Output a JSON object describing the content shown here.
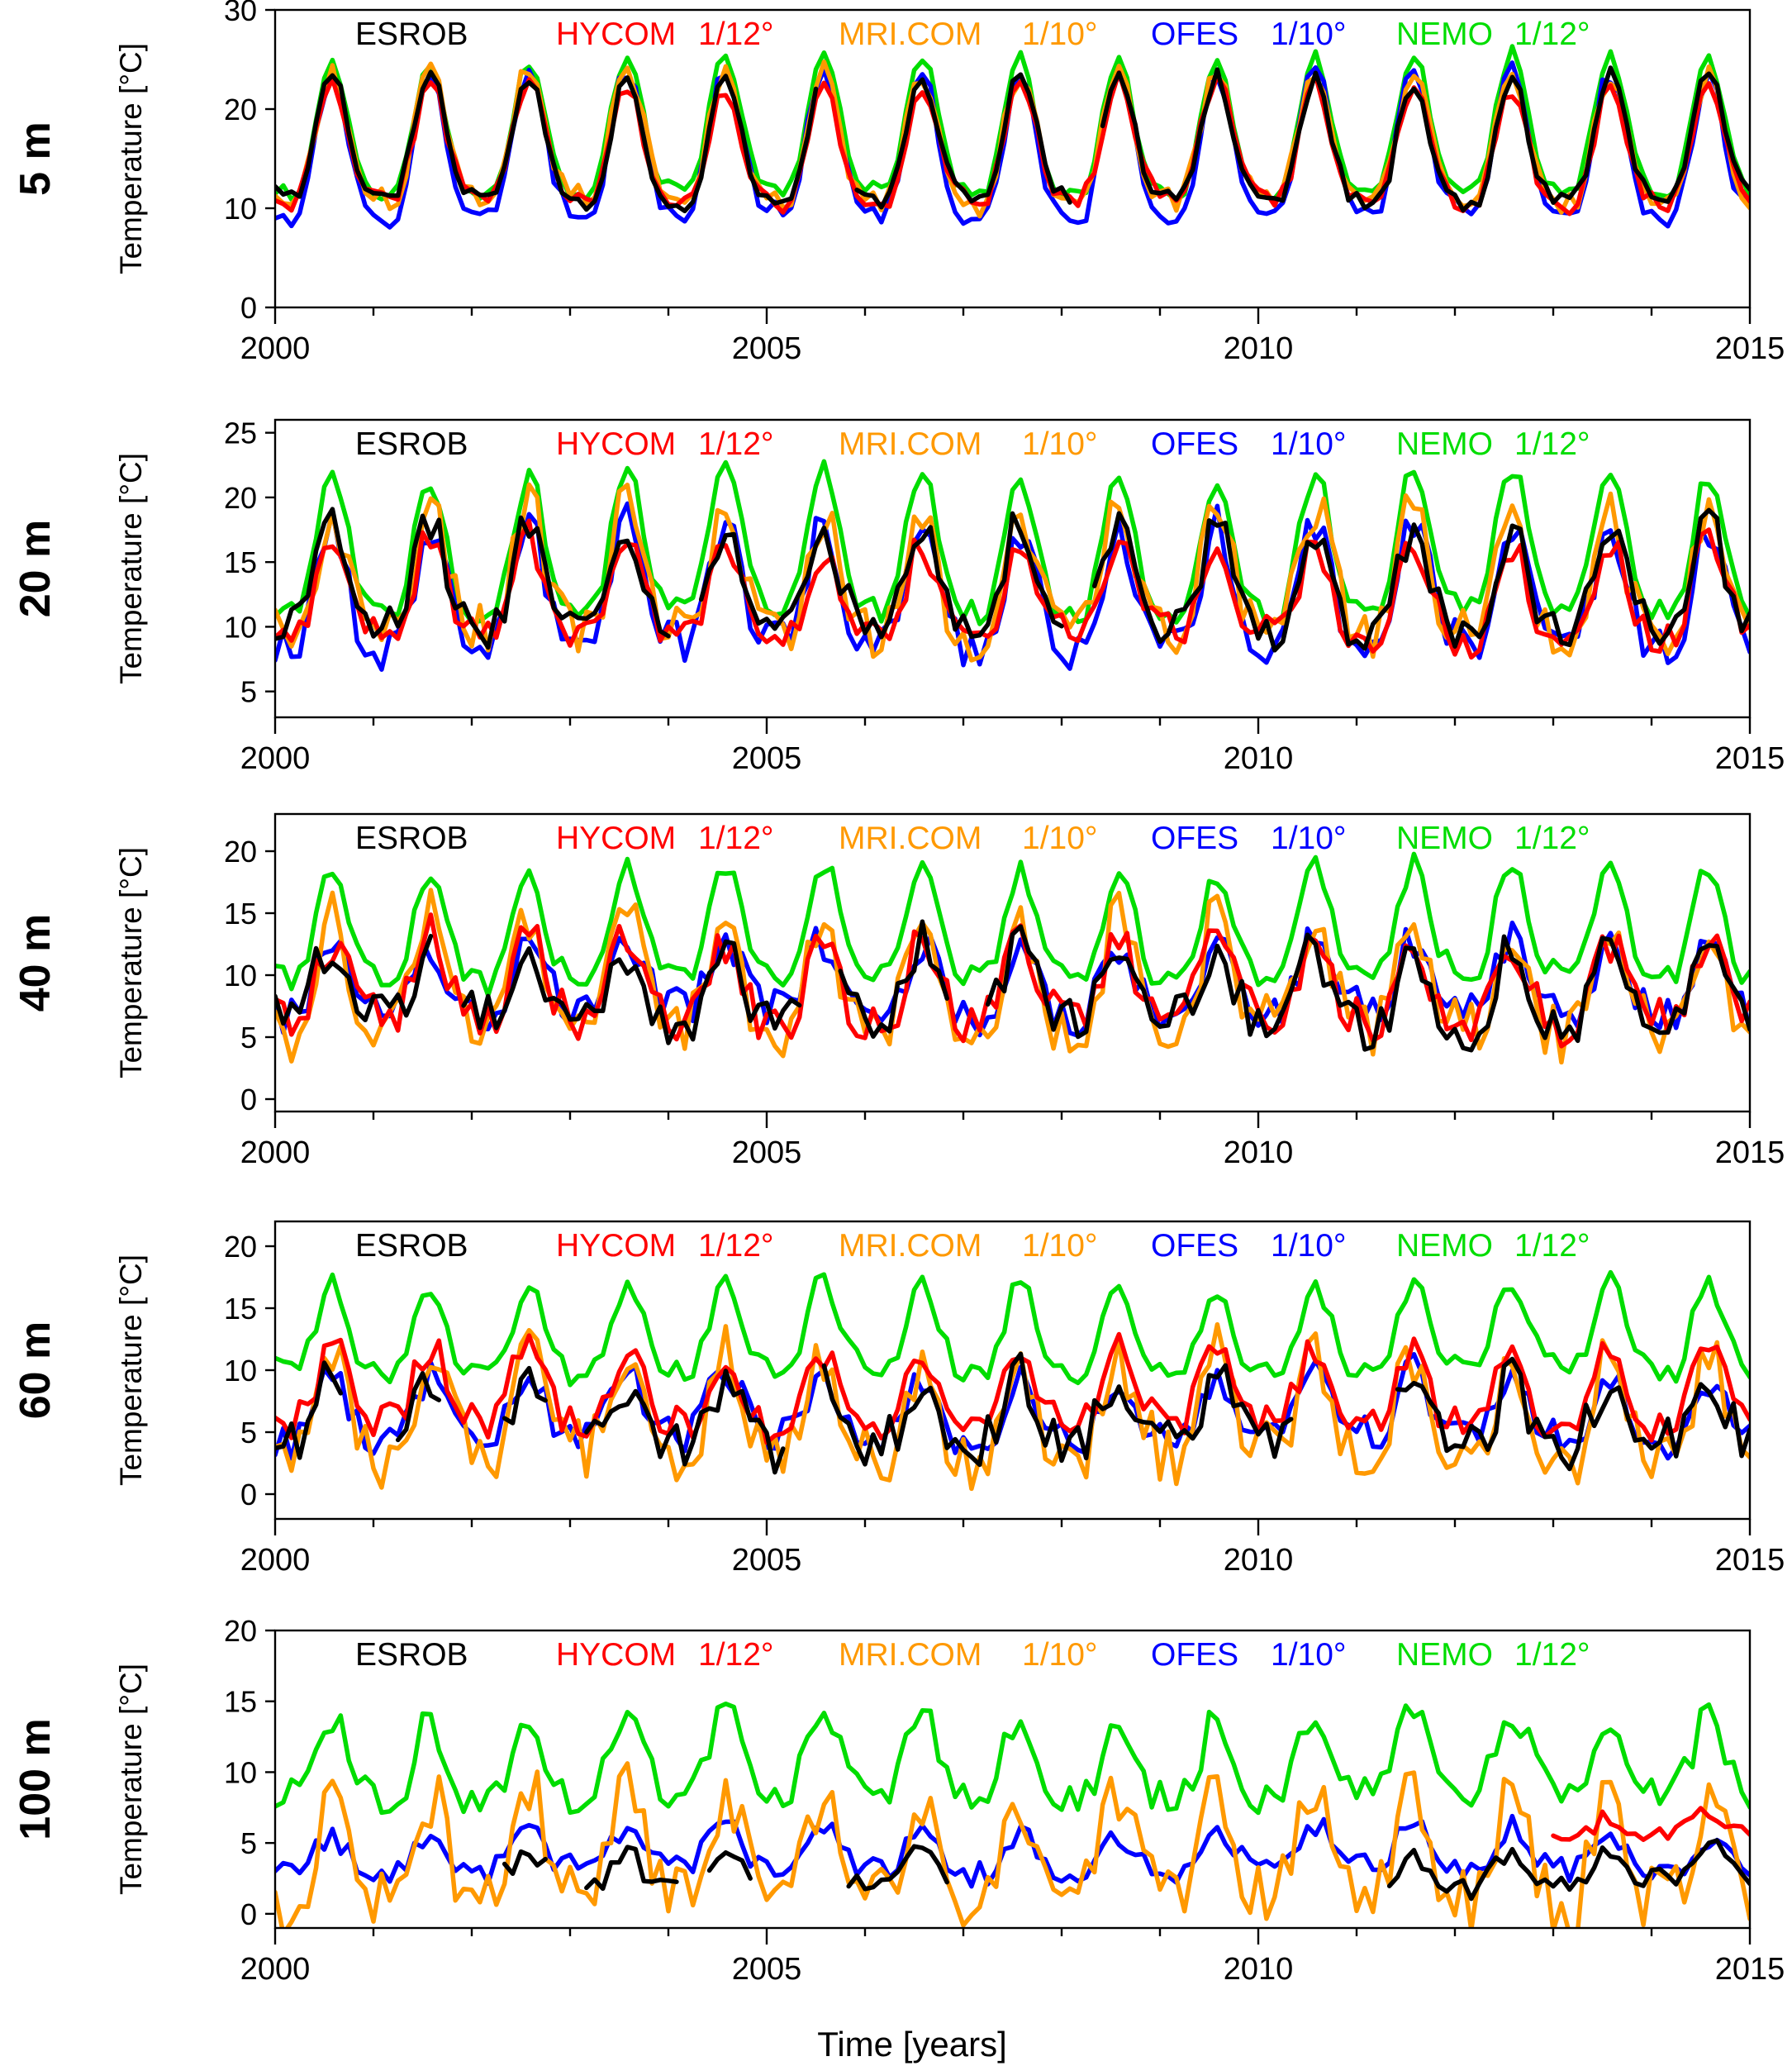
{
  "chart_data": {
    "type": "line",
    "xlabel": "Time [years]",
    "xlim": [
      2000,
      2015
    ],
    "x_major_ticks": [
      2000,
      2005,
      2010,
      2015
    ],
    "x_minor_ticks": [
      2001,
      2002,
      2003,
      2004,
      2006,
      2007,
      2008,
      2009,
      2011,
      2012,
      2013,
      2014
    ],
    "x_tick_labels": [
      "2000",
      "2005",
      "2010",
      "2015"
    ],
    "legend": [
      {
        "name": "ESROB",
        "resolution": "",
        "color": "#000000"
      },
      {
        "name": "HYCOM",
        "resolution": "1/12°",
        "color": "#ff0000"
      },
      {
        "name": "MRI.COM",
        "resolution": "1/10°",
        "color": "#ff9900"
      },
      {
        "name": "OFES",
        "resolution": "1/10°",
        "color": "#0000ff"
      },
      {
        "name": "NEMO",
        "resolution": "1/12°",
        "color": "#00dd00"
      }
    ],
    "panels": [
      {
        "depth_label": "5 m",
        "ylabel": "Temperature [°C]",
        "ylim": [
          0,
          30
        ],
        "yticks": [
          0,
          10,
          20,
          30
        ],
        "ytick_labels": [
          "0",
          "10",
          "20",
          "30"
        ],
        "profile": {
          "ESROB": {
            "mean": 15.5,
            "amp": 6.2,
            "noise": 0.8,
            "gaps": [
              [
                2005.5,
                2005.9
              ],
              [
                2008.1,
                2008.4
              ]
            ],
            "end": 2015
          },
          "HYCOM": {
            "mean": 15.2,
            "amp": 5.8,
            "noise": 0.9
          },
          "MRI.COM": {
            "mean": 15.8,
            "amp": 6.5,
            "noise": 1.2
          },
          "OFES": {
            "mean": 14.8,
            "amp": 7.2,
            "noise": 1.0
          },
          "NEMO": {
            "mean": 16.8,
            "amp": 6.8,
            "noise": 0.7
          }
        }
      },
      {
        "depth_label": "20 m",
        "ylabel": "Temperature [°C]",
        "ylim": [
          3,
          26
        ],
        "yticks": [
          5,
          10,
          15,
          20,
          25
        ],
        "ytick_labels": [
          "5",
          "10",
          "15",
          "20",
          "25"
        ],
        "profile": {
          "ESROB": {
            "mean": 12.8,
            "amp": 4.0,
            "noise": 1.5,
            "gaps": [
              [
                2004.0,
                2004.3
              ],
              [
                2008.0,
                2008.3
              ]
            ]
          },
          "HYCOM": {
            "mean": 12.0,
            "amp": 3.6,
            "noise": 1.4
          },
          "MRI.COM": {
            "mean": 13.2,
            "amp": 4.8,
            "noise": 2.0
          },
          "OFES": {
            "mean": 12.0,
            "amp": 4.6,
            "noise": 1.6
          },
          "NEMO": {
            "mean": 15.2,
            "amp": 5.4,
            "noise": 0.9
          }
        }
      },
      {
        "depth_label": "40 m",
        "ylabel": "Temperature [°C]",
        "ylim": [
          -1,
          23
        ],
        "yticks": [
          0,
          5,
          10,
          15,
          20
        ],
        "ytick_labels": [
          "0",
          "5",
          "10",
          "15",
          "20"
        ],
        "profile": {
          "ESROB": {
            "mean": 8.6,
            "amp": 3.0,
            "noise": 2.0,
            "gaps": [
              [
                2001.6,
                2001.9
              ],
              [
                2005.4,
                2005.7
              ],
              [
                2006.9,
                2007.2
              ]
            ]
          },
          "HYCOM": {
            "mean": 8.8,
            "amp": 3.2,
            "noise": 1.8
          },
          "MRI.COM": {
            "mean": 9.0,
            "amp": 4.5,
            "noise": 2.4
          },
          "OFES": {
            "mean": 9.2,
            "amp": 2.8,
            "noise": 1.6
          },
          "NEMO": {
            "mean": 13.2,
            "amp": 4.4,
            "noise": 1.0
          }
        }
      },
      {
        "depth_label": "60 m",
        "ylabel": "Temperature [°C]",
        "ylim": [
          -2,
          22
        ],
        "yticks": [
          0,
          5,
          10,
          15,
          20
        ],
        "ytick_labels": [
          "0",
          "5",
          "10",
          "15",
          "20"
        ],
        "profile": {
          "ESROB": {
            "mean": 6.0,
            "amp": 2.6,
            "noise": 2.0,
            "gaps": [
              [
                2000.7,
                2001.2
              ],
              [
                2001.7,
                2002.3
              ],
              [
                2002.8,
                2003.1
              ],
              [
                2005.2,
                2005.5
              ],
              [
                2010.4,
                2011.4
              ]
            ]
          },
          "HYCOM": {
            "mean": 8.0,
            "amp": 3.0,
            "noise": 1.5
          },
          "MRI.COM": {
            "mean": 6.2,
            "amp": 4.0,
            "noise": 2.6
          },
          "OFES": {
            "mean": 6.5,
            "amp": 2.6,
            "noise": 1.4
          },
          "NEMO": {
            "mean": 12.5,
            "amp": 3.6,
            "noise": 1.0
          }
        }
      },
      {
        "depth_label": "100 m",
        "ylabel": "Temperature [°C]",
        "ylim": [
          -1,
          20
        ],
        "yticks": [
          0,
          5,
          10,
          15,
          20
        ],
        "ytick_labels": [
          "0",
          "5",
          "10",
          "15",
          "20"
        ],
        "profile": {
          "ESROB": {
            "mean": 3.0,
            "amp": 1.2,
            "noise": 0.8,
            "gaps": [
              [
                2000.0,
                2002.3
              ],
              [
                2002.8,
                2003.1
              ],
              [
                2004.1,
                2004.4
              ],
              [
                2004.9,
                2005.8
              ],
              [
                2006.9,
                2011.3
              ]
            ]
          },
          "HYCOM": {
            "mean": 6.2,
            "amp": 0.8,
            "noise": 0.7,
            "start": 2013.0
          },
          "MRI.COM": {
            "mean": 4.0,
            "amp": 3.6,
            "noise": 2.4
          },
          "OFES": {
            "mean": 4.2,
            "amp": 1.4,
            "noise": 0.9
          },
          "NEMO": {
            "mean": 10.5,
            "amp": 2.8,
            "noise": 1.3
          }
        }
      }
    ]
  }
}
